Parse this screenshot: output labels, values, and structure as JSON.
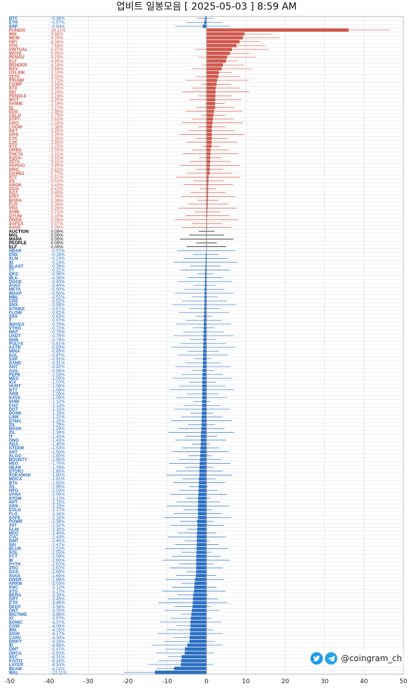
{
  "title": "업비트 일봉모음 [ 2025-05-03 ]  8:59 AM",
  "brand": {
    "handle": "@coingram_ch",
    "icons": [
      "twitter-icon",
      "telegram-icon"
    ]
  },
  "colors": {
    "up": "#d0574c",
    "down": "#2a6fc4",
    "flat": "#000000",
    "grid": "#d9d9d9"
  },
  "chart_data": {
    "type": "bar",
    "orientation": "horizontal",
    "xlim": [
      -50,
      50
    ],
    "xticks": [
      "-50",
      "-40",
      "-30",
      "-20",
      "-10",
      "0",
      "10",
      "20",
      "30",
      "40",
      "50"
    ],
    "grid": true,
    "symbols": [
      "BTC",
      "ETH",
      "XRP",
      "PUNDIX",
      "IMX",
      "MEW",
      "HIFI",
      "ATH",
      "VIRTUAL",
      "MOVE",
      "PENGU",
      "ELF",
      "RENDER",
      "BSV",
      "UXLINK",
      "ZETA",
      "TRUMP",
      "COMP",
      "STX",
      "SEI",
      "PENDLE",
      "WCT",
      "ANIME",
      "IQ",
      "EOS",
      "CELO",
      "STPT",
      "CRO",
      "LOOM",
      "AKT",
      "GRS",
      "CTC",
      "LSK",
      "XTZ",
      "ORBS",
      "THETA",
      "AQUA",
      "ZETA",
      "AERGO",
      "ONG",
      "GAME2",
      "ATZ",
      "ZIL",
      "ARDR",
      "OGA",
      "AQT",
      "IOST",
      "BORA",
      "FLR",
      "TRX",
      "SHIB",
      "QTUM",
      "ONDO",
      "SAFEX",
      "AAVE",
      "AUCTION",
      "MVL",
      "MANA",
      "PEOPLE",
      "ELF",
      "HBAR",
      "ENS",
      "XLM",
      "ID",
      "BLAST",
      "TT",
      "QKC",
      "BLK",
      "DOGE",
      "AVAX",
      "META",
      "WAXP",
      "MBL",
      "CRE",
      "SNX",
      "STRIKE",
      "FLOW",
      "ZRX",
      "T",
      "WAVES",
      "VTHO",
      "MNT",
      "USDT",
      "BNB",
      "POLYX",
      "ASTR",
      "MINA",
      "SOL",
      "SXP",
      "SAND",
      "ANT",
      "AXS",
      "PEPE",
      "MED",
      "ICX",
      "HUNT",
      "BTT",
      "ARB",
      "KAVA",
      "SHIB",
      "CHZ",
      "DOT",
      "BONK",
      "LINK",
      "STMX",
      "ZIL",
      "MASK",
      "ZIL",
      "IT",
      "ONG",
      "ADA",
      "STEEM",
      "SNT",
      "ALGO",
      "BOUNTY",
      "NEO",
      "NEAR",
      "STORJ",
      "TOKAMAK",
      "MOCA",
      "BTA",
      "ZIL",
      "HPO",
      "VANA",
      "ATOM",
      "APT",
      "ARK",
      "EGLD",
      "FLO",
      "SAFE",
      "POWR",
      "JST",
      "GLM",
      "MOC",
      "CVC",
      "GMT",
      "SEI",
      "BLUR",
      "SOL",
      "FCT",
      "W",
      "PYTH",
      "ZRO",
      "GAS",
      "AVAX",
      "ONDR",
      "ARKM",
      "KNC",
      "STG",
      "BERA",
      "GRT",
      "ETH",
      "DEEP",
      "ONT",
      "BIGTIME",
      "IO",
      "SONIC",
      "COW",
      "IMX",
      "SIGN",
      "CARV",
      "DRIFT",
      "ID",
      "OMT",
      "ORCA",
      "XEC",
      "KAITO",
      "LAYER",
      "BEAM",
      "WAL"
    ],
    "values": [
      -0.36,
      -0.57,
      -0.94,
      36.12,
      9.66,
      9.2,
      8.39,
      7.64,
      6.47,
      5.95,
      5.23,
      4.95,
      4.18,
      3.84,
      3.16,
      3.02,
      2.71,
      2.54,
      2.35,
      2.29,
      2.24,
      2.2,
      2.18,
      2.17,
      1.88,
      1.75,
      1.62,
      1.5,
      1.38,
      1.35,
      1.35,
      1.35,
      1.3,
      1.25,
      1.02,
      1.01,
      0.91,
      0.91,
      0.85,
      0.81,
      0.77,
      0.51,
      0.51,
      0.43,
      0.42,
      0.4,
      0.39,
      0.38,
      0.34,
      0.28,
      0.21,
      0.19,
      0.08,
      0.07,
      0.06,
      0.0,
      0.0,
      0.0,
      0.0,
      0.0,
      -0.07,
      -0.19,
      -0.23,
      -0.24,
      -0.28,
      -0.32,
      -0.36,
      -0.38,
      -0.4,
      -0.44,
      -0.5,
      -0.5,
      -0.51,
      -0.52,
      -0.55,
      -0.57,
      -0.62,
      -0.63,
      -0.67,
      -0.7,
      -0.72,
      -0.75,
      -0.76,
      -0.79,
      -0.81,
      -0.83,
      -0.85,
      -0.87,
      -0.91,
      -0.91,
      -0.92,
      -0.98,
      -1.03,
      -1.05,
      -1.07,
      -1.08,
      -1.08,
      -1.08,
      -1.09,
      -1.12,
      -1.14,
      -1.15,
      -1.18,
      -1.22,
      -1.25,
      -1.25,
      -1.29,
      -1.38,
      -1.4,
      -1.43,
      -1.45,
      -1.53,
      -1.55,
      -1.6,
      -1.65,
      -1.7,
      -1.78,
      -1.8,
      -1.8,
      -1.91,
      -1.92,
      -1.98,
      -2.03,
      -2.05,
      -2.12,
      -2.13,
      -2.15,
      -2.17,
      -2.18,
      -2.18,
      -2.38,
      -2.32,
      -2.35,
      -2.4,
      -2.44,
      -2.45,
      -2.47,
      -2.52,
      -2.55,
      -2.58,
      -2.6,
      -2.62,
      -2.62,
      -2.64,
      -2.69,
      -2.89,
      -3.03,
      -3.12,
      -3.17,
      -3.39,
      -3.45,
      -3.48,
      -3.56,
      -3.7,
      -3.86,
      -3.97,
      -4.07,
      -4.09,
      -4.15,
      -4.17,
      -4.3,
      -4.33,
      -4.86,
      -5.47,
      -5.53,
      -6.31,
      -6.44,
      -6.53,
      -8.22,
      -13.11
    ],
    "labels": [
      "-0.36%",
      "-0.57%",
      "-0.94%",
      "36.12%",
      "9.66%",
      "9.20%",
      "8.39%",
      "7.64%",
      "6.47%",
      "5.95%",
      "5.23%",
      "4.95%",
      "4.18%",
      "3.84%",
      "3.16%",
      "3.02%",
      "2.71%",
      "2.54%",
      "2.35%",
      "2.29%",
      "2.24%",
      "2.20%",
      "2.18%",
      "2.17%",
      "1.88%",
      "1.75%",
      "1.62%",
      "1.50%",
      "1.38%",
      "1.35%",
      "1.35%",
      "1.35%",
      "1.30%",
      "1.25%",
      "1.02%",
      "1.01%",
      "0.91%",
      "0.91%",
      "0.85%",
      "0.81%",
      "0.77%",
      "0.51%",
      "0.51%",
      "0.43%",
      "0.42%",
      "0.40%",
      "0.39%",
      "0.38%",
      "0.34%",
      "0.28%",
      "0.21%",
      "0.19%",
      "0.08%",
      "0.07%",
      "0.06%",
      "0.00%",
      "0.00%",
      "0.00%",
      "0.00%",
      "0.00%",
      "-0.07%",
      "-0.19%",
      "-0.23%",
      "-0.24%",
      "-0.28%",
      "-0.32%",
      "-0.36%",
      "-0.38%",
      "-0.40%",
      "-0.44%",
      "-0.50%",
      "-0.50%",
      "-0.51%",
      "-0.52%",
      "-0.55%",
      "-0.57%",
      "-0.62%",
      "-0.63%",
      "-0.67%",
      "-0.70%",
      "-0.72%",
      "-0.75%",
      "-0.76%",
      "-0.79%",
      "-0.81%",
      "-0.83%",
      "-0.85%",
      "-0.87%",
      "-0.91%",
      "-0.91%",
      "-0.92%",
      "-0.98%",
      "-1.03%",
      "-1.05%",
      "-1.07%",
      "-1.08%",
      "-1.08%",
      "-1.08%",
      "-1.09%",
      "-1.12%",
      "-1.14%",
      "-1.15%",
      "-1.18%",
      "-1.22%",
      "-1.25%",
      "-1.25%",
      "-1.29%",
      "-1.38%",
      "-1.40%",
      "-1.43%",
      "-1.45%",
      "-1.53%",
      "-1.55%",
      "-1.60%",
      "-1.65%",
      "-1.70%",
      "-1.78%",
      "-1.80%",
      "-1.80%",
      "-1.91%",
      "-1.92%",
      "-1.98%",
      "-2.03%",
      "-2.05%",
      "-2.12%",
      "-2.13%",
      "-2.15%",
      "-2.17%",
      "-2.18%",
      "-2.18%",
      "-2.38%",
      "-2.32%",
      "-2.35%",
      "-2.40%",
      "-2.44%",
      "-2.45%",
      "-2.47%",
      "-2.52%",
      "-2.55%",
      "-2.58%",
      "-2.60%",
      "-2.62%",
      "-2.62%",
      "-2.64%",
      "-2.69%",
      "-2.89%",
      "-3.03%",
      "-3.12%",
      "-3.17%",
      "-3.39%",
      "-3.45%",
      "-3.48%",
      "-3.56%",
      "-3.70%",
      "-3.86%",
      "-3.97%",
      "-4.07%",
      "-4.09%",
      "-4.15%",
      "-4.17%",
      "-4.30%",
      "-4.33%",
      "-4.86%",
      "-5.47%",
      "-5.53%",
      "-6.31%",
      "-6.44%",
      "-6.53%",
      "-8.22%",
      "-13.11%"
    ]
  }
}
